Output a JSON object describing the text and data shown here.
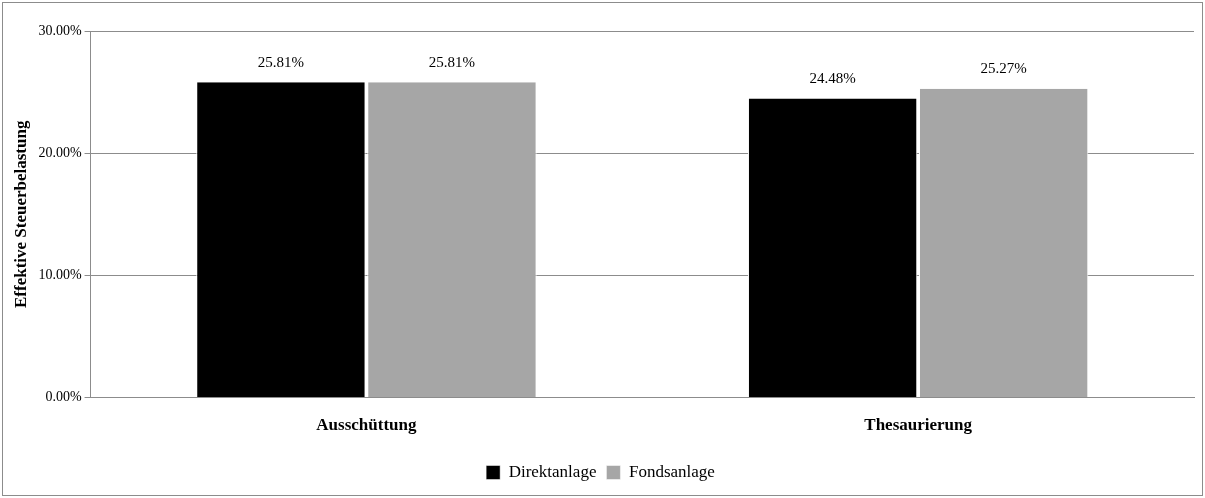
{
  "chart_data": {
    "type": "bar",
    "ylabel": "Effektive Steuerbelastung",
    "categories": [
      "Ausschüttung",
      "Thesaurierung"
    ],
    "series": [
      {
        "name": "Direktanlage",
        "color": "#000000",
        "values": [
          25.81,
          24.48
        ],
        "value_labels": [
          "25.81%",
          "24.48%"
        ]
      },
      {
        "name": "Fondsanlage",
        "color": "#a6a6a6",
        "values": [
          25.81,
          25.27
        ],
        "value_labels": [
          "25.81%",
          "25.27%"
        ]
      }
    ],
    "ylim": [
      0,
      30
    ],
    "yticks": [
      {
        "value": 0,
        "label": "0.00%"
      },
      {
        "value": 10,
        "label": "10.00%"
      },
      {
        "value": 20,
        "label": "20.00%"
      },
      {
        "value": 30,
        "label": "30.00%"
      }
    ],
    "grid": "y",
    "legend": "bottom"
  }
}
